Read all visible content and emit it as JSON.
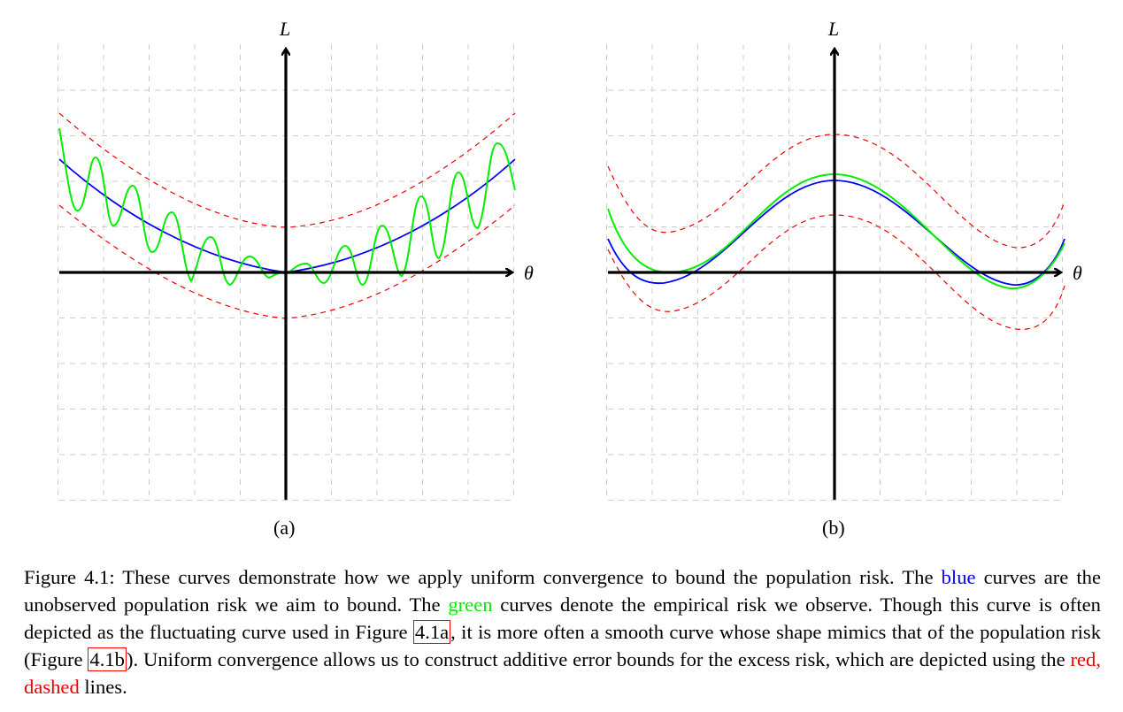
{
  "figure": {
    "panels": [
      {
        "id": "a",
        "label": "(a)",
        "y_axis_label": "L",
        "x_axis_label": "θ"
      },
      {
        "id": "b",
        "label": "(b)",
        "y_axis_label": "L",
        "x_axis_label": "θ"
      }
    ],
    "colors": {
      "population_risk": "#0000ff",
      "empirical_risk": "#00ee00",
      "bounds": "#ee0000",
      "grid": "#cccccc",
      "axes": "#000000"
    }
  },
  "chart_data": [
    {
      "type": "line",
      "panel": "(a)",
      "xlabel": "θ",
      "ylabel": "L",
      "xlim": [
        -5,
        5
      ],
      "ylim": [
        -5,
        5
      ],
      "grid": true,
      "series": [
        {
          "role": "population-risk",
          "color": "#0000ff",
          "style": "solid",
          "points": [
            [
              -5,
              2.5
            ],
            [
              -4,
              1.6
            ],
            [
              -3,
              0.9
            ],
            [
              -2,
              0.4
            ],
            [
              -1,
              0.1
            ],
            [
              0,
              0
            ],
            [
              1,
              0.1
            ],
            [
              2,
              0.4
            ],
            [
              3,
              0.9
            ],
            [
              4,
              1.6
            ],
            [
              5,
              2.5
            ]
          ]
        },
        {
          "role": "empirical-risk",
          "color": "#00ee00",
          "style": "solid",
          "points": [
            [
              -5,
              3.2
            ],
            [
              -4.5,
              1.4
            ],
            [
              -4,
              2.0
            ],
            [
              -3.5,
              0.8
            ],
            [
              -3,
              1.2
            ],
            [
              -2.5,
              0.3
            ],
            [
              -2,
              0.8
            ],
            [
              -1.5,
              0.0
            ],
            [
              -1,
              0.4
            ],
            [
              0,
              0
            ],
            [
              1,
              0.3
            ],
            [
              1.5,
              -0.2
            ],
            [
              2,
              1.0
            ],
            [
              2.5,
              0.0
            ],
            [
              3,
              1.5
            ],
            [
              3.5,
              0.5
            ],
            [
              4,
              2.2
            ],
            [
              4.5,
              3.0
            ],
            [
              5,
              1.9
            ]
          ]
        },
        {
          "role": "upper-bound",
          "color": "#ee0000",
          "style": "dashed",
          "points": [
            [
              -5,
              3.5
            ],
            [
              -3,
              1.9
            ],
            [
              0,
              1.0
            ],
            [
              3,
              1.9
            ],
            [
              5,
              3.5
            ]
          ]
        },
        {
          "role": "lower-bound",
          "color": "#ee0000",
          "style": "dashed",
          "points": [
            [
              -5,
              1.5
            ],
            [
              -3,
              -0.1
            ],
            [
              0,
              -1.0
            ],
            [
              3,
              -0.1
            ],
            [
              5,
              1.5
            ]
          ]
        }
      ]
    },
    {
      "type": "line",
      "panel": "(b)",
      "xlabel": "θ",
      "ylabel": "L",
      "xlim": [
        -5,
        5
      ],
      "ylim": [
        -5,
        5
      ],
      "grid": true,
      "series": [
        {
          "role": "population-risk",
          "color": "#0000ff",
          "style": "solid",
          "points": [
            [
              -5,
              0.7
            ],
            [
              -3.8,
              -0.2
            ],
            [
              -2,
              0.9
            ],
            [
              0,
              2.0
            ],
            [
              2,
              1.0
            ],
            [
              3,
              0.0
            ],
            [
              4,
              -0.3
            ],
            [
              5,
              0.7
            ]
          ]
        },
        {
          "role": "empirical-risk",
          "color": "#00ee00",
          "style": "solid",
          "points": [
            [
              -5,
              1.4
            ],
            [
              -3.6,
              0.0
            ],
            [
              -2,
              1.0
            ],
            [
              0,
              2.15
            ],
            [
              2,
              1.0
            ],
            [
              3,
              0.0
            ],
            [
              4,
              -0.35
            ],
            [
              5,
              0.6
            ]
          ]
        },
        {
          "role": "upper-bound",
          "color": "#ee0000",
          "style": "dashed",
          "points": [
            [
              -5,
              2.3
            ],
            [
              -3.8,
              0.9
            ],
            [
              0,
              3.0
            ],
            [
              4,
              0.6
            ],
            [
              5,
              1.6
            ]
          ]
        },
        {
          "role": "lower-bound",
          "color": "#ee0000",
          "style": "dashed",
          "points": [
            [
              -5,
              0.8
            ],
            [
              -3.8,
              -0.9
            ],
            [
              0,
              1.2
            ],
            [
              4,
              -1.3
            ],
            [
              5,
              -0.4
            ]
          ]
        }
      ]
    }
  ],
  "caption": {
    "s1": "Figure 4.1: These curves demonstrate how we apply uniform convergence to bound the population risk. The",
    "blue": "blue",
    "s2": " curves are the unobserved population risk we aim to bound. The ",
    "green": "green",
    "s3": " curves denote the empirical risk we observe. Though this curve is often depicted as the fluctuating curve used in Figure ",
    "ref_a": "4.1a",
    "s4": ", it is more often a smooth curve whose shape mimics that of the population risk (Figure ",
    "ref_b": "4.1b",
    "s5": "). Uniform convergence allows us to construct additive error bounds for the excess risk, which are depicted using the ",
    "red": "red, dashed",
    "s6": " lines."
  }
}
